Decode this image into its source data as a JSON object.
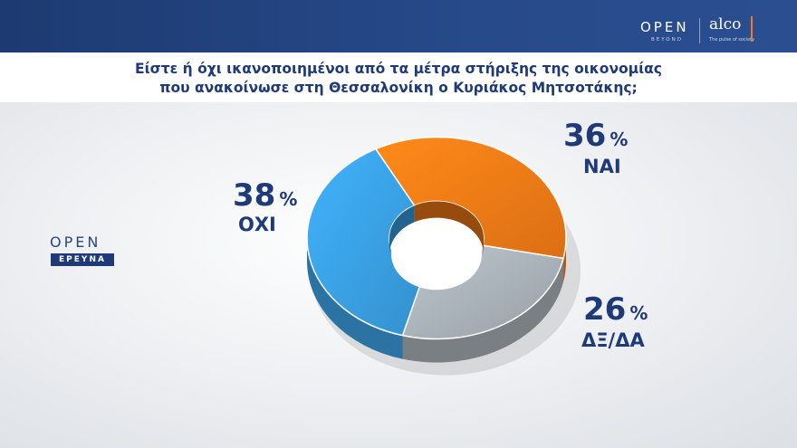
{
  "header": {
    "brand_open": "OPEN",
    "brand_beyond": "BEYOND",
    "brand_alco": "alco",
    "brand_alco_tagline": "The pulse of society"
  },
  "question": {
    "line1": "Είστε ή όχι ικανοποιημένοι από τα μέτρα στήριξης της οικονομίας",
    "line2": "που ανακοίνωσε στη Θεσσαλονίκη ο Κυριάκος Μητσοτάκης;"
  },
  "logo": {
    "open": "OPEN",
    "ereyna": "ΕΡΕΥΝΑ"
  },
  "chart_data": {
    "type": "pie",
    "style": "3d-donut",
    "title": "Είστε ή όχι ικανοποιημένοι από τα μέτρα στήριξης της οικονομίας που ανακοίνωσε στη Θεσσαλονίκη ο Κυριάκος Μητσοτάκης;",
    "unit": "%",
    "slices": [
      {
        "label": "ΝΑΙ",
        "value": 36,
        "color": "#f47b16"
      },
      {
        "label": "ΔΞ/ΔΑ",
        "value": 26,
        "color": "#a9b1b8"
      },
      {
        "label": "ΟΧΙ",
        "value": 38,
        "color": "#3aa0e3"
      }
    ]
  }
}
